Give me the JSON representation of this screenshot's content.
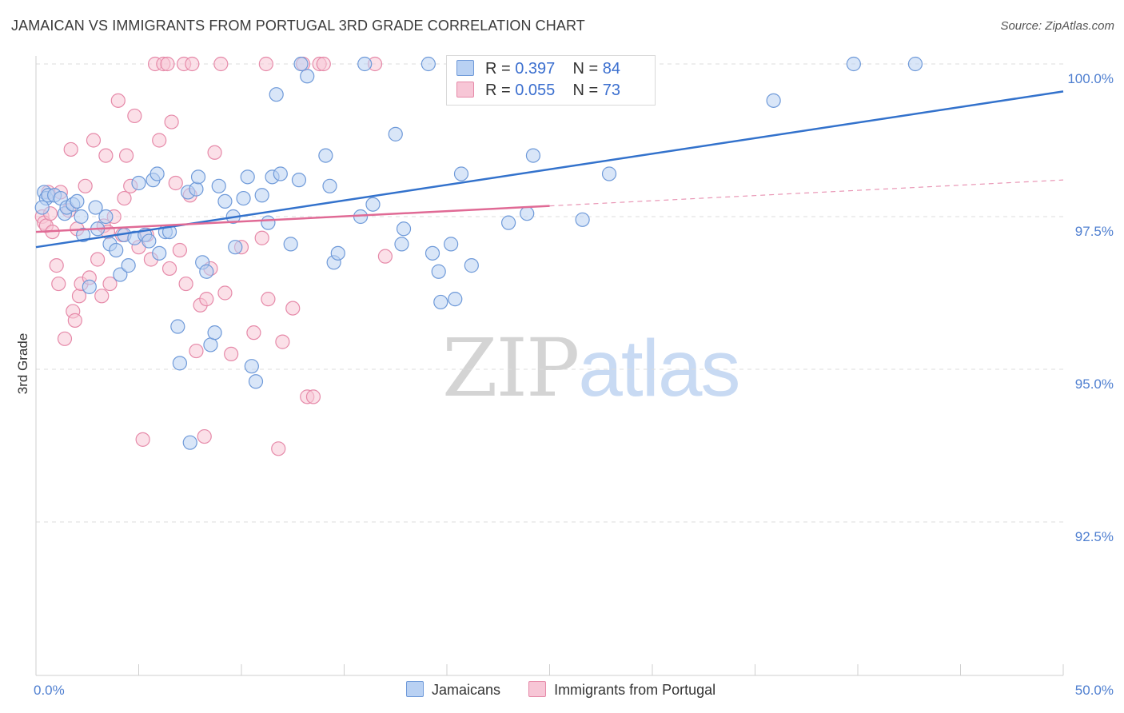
{
  "title": "JAMAICAN VS IMMIGRANTS FROM PORTUGAL 3RD GRADE CORRELATION CHART",
  "source": "Source: ZipAtlas.com",
  "watermark": {
    "zip": "ZIP",
    "atlas": "atlas"
  },
  "legend": {
    "rows": [
      {
        "r_label": "R =",
        "r_value": "0.397",
        "n_label": "N =",
        "n_value": "84"
      },
      {
        "r_label": "R =",
        "r_value": "0.055",
        "n_label": "N =",
        "n_value": "73"
      }
    ]
  },
  "bottom_legend": [
    "Jamaicans",
    "Immigrants from Portugal"
  ],
  "colors": {
    "blue_fill": "#b9d1f3",
    "blue_stroke": "#6f9ad9",
    "blue_line": "#3372cc",
    "pink_fill": "#f7c6d6",
    "pink_stroke": "#e68aa9",
    "pink_line": "#e06a95"
  },
  "chart_data": {
    "type": "scatter",
    "title": "JAMAICAN VS IMMIGRANTS FROM PORTUGAL 3RD GRADE CORRELATION CHART",
    "xlabel": "",
    "ylabel": "3rd Grade",
    "xlim": [
      0,
      50
    ],
    "ylim": [
      90.2,
      100.4
    ],
    "x_tick_labels": [
      "0.0%",
      "50.0%"
    ],
    "y_ticks": [
      92.5,
      95.0,
      97.5,
      100.0
    ],
    "y_tick_labels": [
      "92.5%",
      "95.0%",
      "97.5%",
      "100.0%"
    ],
    "grid": true,
    "series": [
      {
        "name": "Jamaicans",
        "trend": {
          "x": [
            0,
            50
          ],
          "y": [
            97.0,
            99.55
          ],
          "dashed_from": null
        },
        "points": [
          [
            0.4,
            97.9
          ],
          [
            0.5,
            97.8
          ],
          [
            0.6,
            97.85
          ],
          [
            0.9,
            97.85
          ],
          [
            1.2,
            97.8
          ],
          [
            1.4,
            97.55
          ],
          [
            1.5,
            97.65
          ],
          [
            1.8,
            97.7
          ],
          [
            2.0,
            97.75
          ],
          [
            2.2,
            97.5
          ],
          [
            2.3,
            97.2
          ],
          [
            2.6,
            96.35
          ],
          [
            2.9,
            97.65
          ],
          [
            3.0,
            97.3
          ],
          [
            3.4,
            97.5
          ],
          [
            3.6,
            97.05
          ],
          [
            3.9,
            96.95
          ],
          [
            4.1,
            96.55
          ],
          [
            4.3,
            97.2
          ],
          [
            4.5,
            96.7
          ],
          [
            4.8,
            97.15
          ],
          [
            5.0,
            98.05
          ],
          [
            5.3,
            97.2
          ],
          [
            5.5,
            97.1
          ],
          [
            5.7,
            98.1
          ],
          [
            5.9,
            98.2
          ],
          [
            6.0,
            96.9
          ],
          [
            6.3,
            97.25
          ],
          [
            6.5,
            97.25
          ],
          [
            6.9,
            95.7
          ],
          [
            7.0,
            95.1
          ],
          [
            7.4,
            97.9
          ],
          [
            7.5,
            93.8
          ],
          [
            7.8,
            97.95
          ],
          [
            7.9,
            98.15
          ],
          [
            8.1,
            96.75
          ],
          [
            8.3,
            96.6
          ],
          [
            8.5,
            95.4
          ],
          [
            8.7,
            95.6
          ],
          [
            8.9,
            98.0
          ],
          [
            9.2,
            97.75
          ],
          [
            9.6,
            97.5
          ],
          [
            9.7,
            97.0
          ],
          [
            10.1,
            97.8
          ],
          [
            10.3,
            98.15
          ],
          [
            10.5,
            95.05
          ],
          [
            10.7,
            94.8
          ],
          [
            11.0,
            97.85
          ],
          [
            11.3,
            97.4
          ],
          [
            11.5,
            98.15
          ],
          [
            11.7,
            99.5
          ],
          [
            11.9,
            98.2
          ],
          [
            12.4,
            97.05
          ],
          [
            12.8,
            98.1
          ],
          [
            12.9,
            100.0
          ],
          [
            13.2,
            99.8
          ],
          [
            14.1,
            98.5
          ],
          [
            14.3,
            98.0
          ],
          [
            14.5,
            96.75
          ],
          [
            14.7,
            96.9
          ],
          [
            15.8,
            97.5
          ],
          [
            16.0,
            100.0
          ],
          [
            16.4,
            97.7
          ],
          [
            17.5,
            98.85
          ],
          [
            17.8,
            97.05
          ],
          [
            17.9,
            97.3
          ],
          [
            19.1,
            100.0
          ],
          [
            19.3,
            96.9
          ],
          [
            19.6,
            96.6
          ],
          [
            19.7,
            96.1
          ],
          [
            20.2,
            97.05
          ],
          [
            20.4,
            96.15
          ],
          [
            20.7,
            98.2
          ],
          [
            21.2,
            96.7
          ],
          [
            23.0,
            97.4
          ],
          [
            23.9,
            97.55
          ],
          [
            24.2,
            98.5
          ],
          [
            26.6,
            97.45
          ],
          [
            27.4,
            100.0
          ],
          [
            27.9,
            98.2
          ],
          [
            35.9,
            99.4
          ],
          [
            39.8,
            100.0
          ],
          [
            42.8,
            100.0
          ],
          [
            0.3,
            97.65
          ]
        ]
      },
      {
        "name": "Immigrants from Portugal",
        "trend": {
          "x": [
            0,
            50
          ],
          "y": [
            97.25,
            98.1
          ],
          "dashed_from": 25
        },
        "points": [
          [
            0.3,
            97.5
          ],
          [
            0.4,
            97.4
          ],
          [
            0.5,
            97.35
          ],
          [
            0.6,
            97.9
          ],
          [
            0.7,
            97.55
          ],
          [
            0.8,
            97.25
          ],
          [
            1.0,
            96.7
          ],
          [
            1.1,
            96.4
          ],
          [
            1.2,
            97.9
          ],
          [
            1.4,
            95.5
          ],
          [
            1.6,
            97.6
          ],
          [
            1.7,
            98.6
          ],
          [
            1.8,
            95.95
          ],
          [
            1.9,
            95.8
          ],
          [
            2.0,
            97.3
          ],
          [
            2.1,
            96.2
          ],
          [
            2.2,
            96.4
          ],
          [
            2.4,
            98.0
          ],
          [
            2.6,
            96.5
          ],
          [
            2.8,
            98.75
          ],
          [
            3.0,
            96.8
          ],
          [
            3.2,
            96.2
          ],
          [
            3.3,
            97.35
          ],
          [
            3.4,
            98.5
          ],
          [
            3.5,
            97.25
          ],
          [
            3.6,
            96.4
          ],
          [
            3.8,
            97.5
          ],
          [
            4.0,
            99.4
          ],
          [
            4.2,
            97.2
          ],
          [
            4.3,
            97.8
          ],
          [
            4.4,
            98.5
          ],
          [
            4.6,
            98.0
          ],
          [
            4.8,
            99.15
          ],
          [
            5.0,
            97.0
          ],
          [
            5.2,
            93.85
          ],
          [
            5.4,
            97.2
          ],
          [
            5.6,
            96.8
          ],
          [
            5.8,
            100.0
          ],
          [
            6.0,
            98.75
          ],
          [
            6.2,
            100.0
          ],
          [
            6.4,
            100.0
          ],
          [
            6.5,
            96.65
          ],
          [
            6.6,
            99.05
          ],
          [
            6.8,
            98.05
          ],
          [
            7.0,
            96.95
          ],
          [
            7.2,
            100.0
          ],
          [
            7.3,
            96.4
          ],
          [
            7.5,
            97.85
          ],
          [
            7.6,
            100.0
          ],
          [
            7.8,
            95.3
          ],
          [
            8.0,
            96.05
          ],
          [
            8.2,
            93.9
          ],
          [
            8.3,
            96.15
          ],
          [
            8.5,
            96.65
          ],
          [
            8.7,
            98.55
          ],
          [
            9.0,
            100.0
          ],
          [
            9.2,
            96.25
          ],
          [
            9.5,
            95.25
          ],
          [
            10.0,
            97.0
          ],
          [
            10.6,
            95.6
          ],
          [
            11.0,
            97.15
          ],
          [
            11.2,
            100.0
          ],
          [
            11.3,
            96.15
          ],
          [
            11.8,
            93.7
          ],
          [
            12.0,
            95.45
          ],
          [
            12.5,
            96.0
          ],
          [
            13.0,
            100.0
          ],
          [
            13.2,
            94.55
          ],
          [
            13.5,
            94.55
          ],
          [
            13.8,
            100.0
          ],
          [
            14.0,
            100.0
          ],
          [
            16.5,
            100.0
          ],
          [
            17.0,
            96.85
          ]
        ]
      }
    ]
  }
}
